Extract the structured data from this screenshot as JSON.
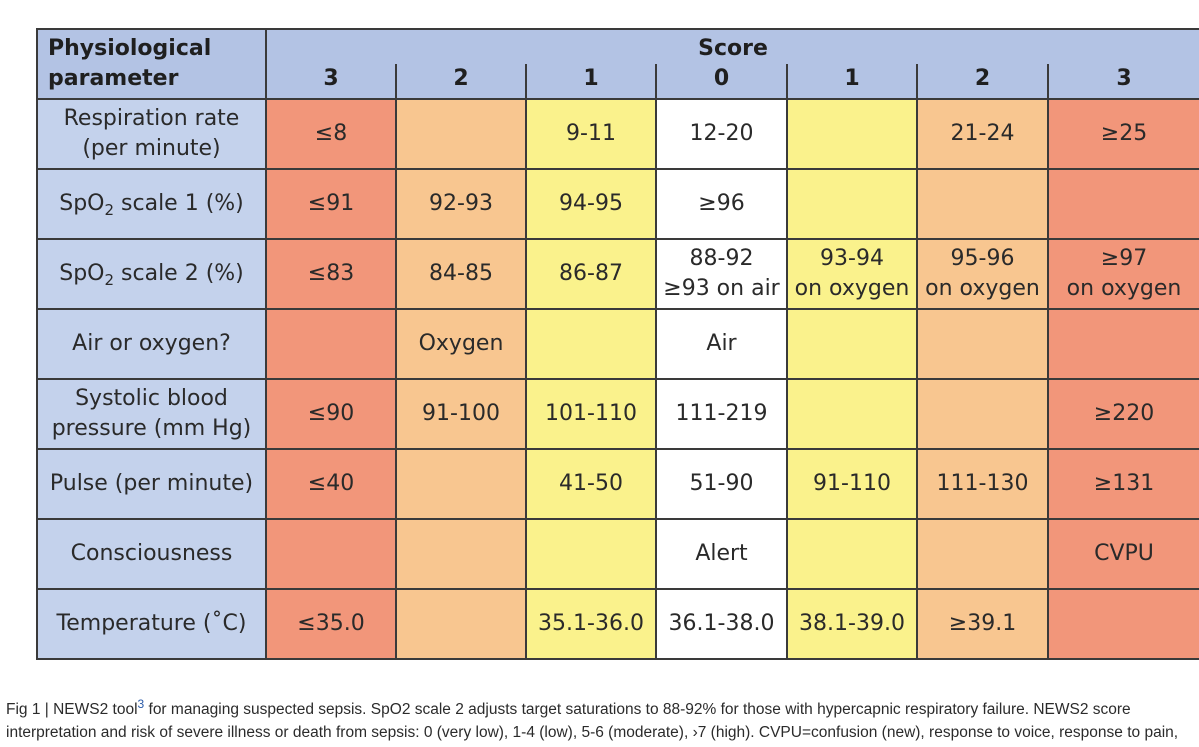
{
  "table": {
    "header": {
      "param_line1": "Physiological",
      "param_line2": "parameter",
      "score_title": "Score",
      "scores": [
        "3",
        "2",
        "1",
        "0",
        "1",
        "2",
        "3"
      ]
    },
    "rows": [
      {
        "param_lines": [
          "Respiration rate",
          "(per minute)"
        ],
        "cells": [
          [
            "≤8"
          ],
          [
            ""
          ],
          [
            "9-11"
          ],
          [
            "12-20"
          ],
          [
            ""
          ],
          [
            "21-24"
          ],
          [
            "≥25"
          ]
        ]
      },
      {
        "param_prefix": "SpO",
        "param_sub": "2",
        "param_suffix": " scale 1 (%)",
        "cells": [
          [
            "≤91"
          ],
          [
            "92-93"
          ],
          [
            "94-95"
          ],
          [
            "≥96"
          ],
          [
            ""
          ],
          [
            ""
          ],
          [
            ""
          ]
        ]
      },
      {
        "param_prefix": "SpO",
        "param_sub": "2",
        "param_suffix": " scale 2 (%)",
        "cells": [
          [
            "≤83"
          ],
          [
            "84-85"
          ],
          [
            "86-87"
          ],
          [
            "88-92",
            "≥93 on air"
          ],
          [
            "93-94",
            "on oxygen"
          ],
          [
            "95-96",
            "on oxygen"
          ],
          [
            "≥97",
            "on oxygen"
          ]
        ]
      },
      {
        "param_lines": [
          "Air or oxygen?"
        ],
        "cells": [
          [
            ""
          ],
          [
            "Oxygen"
          ],
          [
            ""
          ],
          [
            "Air"
          ],
          [
            ""
          ],
          [
            ""
          ],
          [
            ""
          ]
        ]
      },
      {
        "param_lines": [
          "Systolic blood",
          "pressure (mm Hg)"
        ],
        "cells": [
          [
            "≤90"
          ],
          [
            "91-100"
          ],
          [
            "101-110"
          ],
          [
            "111-219"
          ],
          [
            ""
          ],
          [
            ""
          ],
          [
            "≥220"
          ]
        ]
      },
      {
        "param_lines": [
          "Pulse (per minute)"
        ],
        "cells": [
          [
            "≤40"
          ],
          [
            ""
          ],
          [
            "41-50"
          ],
          [
            "51-90"
          ],
          [
            "91-110"
          ],
          [
            "111-130"
          ],
          [
            "≥131"
          ]
        ]
      },
      {
        "param_lines": [
          "Consciousness"
        ],
        "cells": [
          [
            ""
          ],
          [
            ""
          ],
          [
            ""
          ],
          [
            "Alert"
          ],
          [
            ""
          ],
          [
            ""
          ],
          [
            "CVPU"
          ]
        ]
      },
      {
        "param_lines": [
          "Temperature (˚C)"
        ],
        "cells": [
          [
            "≤35.0"
          ],
          [
            ""
          ],
          [
            "35.1-36.0"
          ],
          [
            "36.1-38.0"
          ],
          [
            "38.1-39.0"
          ],
          [
            "≥39.1"
          ],
          [
            ""
          ]
        ]
      }
    ],
    "colors": {
      "header_bg": "#b3c3e4",
      "param_bg": "#c4d2ec",
      "score3": "#f2967a",
      "score2": "#f8c690",
      "score1": "#faf28c",
      "score0": "#ffffff",
      "border": "#3a3a3a"
    }
  },
  "caption": {
    "line1_a": "Fig 1 | NEWS2 tool",
    "ref": "3",
    "line1_b": " for managing suspected sepsis. SpO2 scale 2 adjusts target saturations to 88-92% for those with hypercapnic respiratory failure. NEWS2 score",
    "line2": "interpretation and risk of severe illness or death from sepsis: 0 (very low), 1-4 (low), 5-6 (moderate), ›7 (high). CVPU=confusion (new), response to voice, response to pain,"
  }
}
